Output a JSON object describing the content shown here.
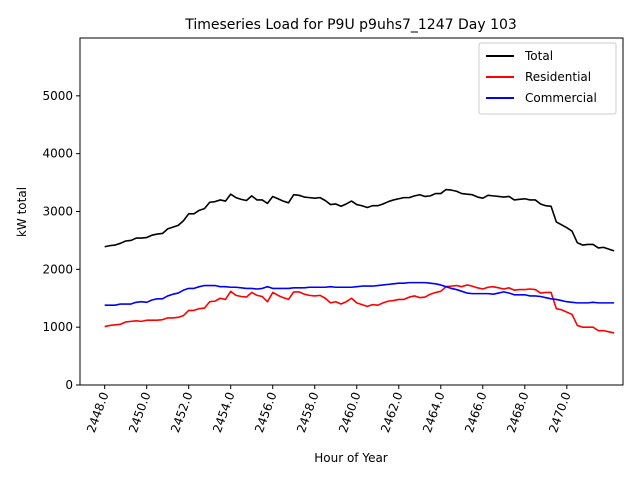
{
  "chart_data": {
    "type": "line",
    "title": "Timeseries Load for P9U p9uhs7_1247  Day 103",
    "xlabel": "Hour of Year",
    "ylabel": "kW total",
    "xlim": [
      2446.825,
      2472.675
    ],
    "ylim": [
      0,
      6000
    ],
    "xticks": [
      "2448.0",
      "2450.0",
      "2452.0",
      "2454.0",
      "2456.0",
      "2458.0",
      "2460.0",
      "2462.0",
      "2464.0",
      "2466.0",
      "2468.0",
      "2470.0"
    ],
    "xtick_values": [
      2448,
      2450,
      2452,
      2454,
      2456,
      2458,
      2460,
      2462,
      2464,
      2466,
      2468,
      2470
    ],
    "yticks": [
      "0",
      "1000",
      "2000",
      "3000",
      "4000",
      "5000"
    ],
    "ytick_values": [
      0,
      1000,
      2000,
      3000,
      4000,
      5000
    ],
    "legend_position": "top-right",
    "x_start": 2448.0,
    "x_step": 0.25,
    "series": [
      {
        "name": "Total",
        "color": "#000000",
        "values": [
          2390,
          2410,
          2420,
          2450,
          2490,
          2500,
          2540,
          2540,
          2550,
          2590,
          2610,
          2620,
          2700,
          2730,
          2760,
          2840,
          2960,
          2960,
          3020,
          3050,
          3160,
          3170,
          3200,
          3180,
          3300,
          3240,
          3210,
          3190,
          3270,
          3200,
          3200,
          3140,
          3260,
          3220,
          3180,
          3150,
          3290,
          3280,
          3250,
          3240,
          3230,
          3240,
          3190,
          3120,
          3130,
          3090,
          3130,
          3180,
          3120,
          3100,
          3070,
          3100,
          3100,
          3130,
          3170,
          3200,
          3220,
          3240,
          3240,
          3270,
          3290,
          3260,
          3270,
          3310,
          3310,
          3380,
          3370,
          3350,
          3310,
          3300,
          3290,
          3250,
          3230,
          3280,
          3270,
          3260,
          3250,
          3260,
          3200,
          3210,
          3220,
          3200,
          3200,
          3130,
          3100,
          3090,
          2820,
          2770,
          2720,
          2660,
          2460,
          2420,
          2430,
          2430,
          2370,
          2380,
          2350,
          2320
        ]
      },
      {
        "name": "Residential",
        "color": "#ff0000",
        "values": [
          1010,
          1030,
          1040,
          1050,
          1090,
          1100,
          1110,
          1100,
          1120,
          1120,
          1120,
          1130,
          1160,
          1160,
          1170,
          1200,
          1290,
          1290,
          1320,
          1330,
          1440,
          1450,
          1500,
          1480,
          1620,
          1550,
          1530,
          1520,
          1600,
          1550,
          1530,
          1440,
          1600,
          1550,
          1510,
          1480,
          1610,
          1610,
          1570,
          1550,
          1540,
          1550,
          1500,
          1420,
          1440,
          1400,
          1440,
          1500,
          1420,
          1390,
          1360,
          1390,
          1380,
          1420,
          1450,
          1460,
          1480,
          1480,
          1520,
          1540,
          1510,
          1520,
          1570,
          1600,
          1620,
          1700,
          1710,
          1720,
          1700,
          1730,
          1710,
          1680,
          1660,
          1690,
          1700,
          1680,
          1660,
          1680,
          1640,
          1650,
          1650,
          1660,
          1650,
          1590,
          1600,
          1600,
          1320,
          1300,
          1260,
          1220,
          1030,
          1000,
          1000,
          1000,
          940,
          940,
          920,
          900
        ]
      },
      {
        "name": "Commercial",
        "color": "#0000ff",
        "values": [
          1380,
          1380,
          1380,
          1400,
          1400,
          1400,
          1430,
          1440,
          1430,
          1470,
          1490,
          1490,
          1540,
          1570,
          1590,
          1640,
          1670,
          1670,
          1700,
          1720,
          1720,
          1720,
          1700,
          1700,
          1690,
          1690,
          1680,
          1670,
          1670,
          1660,
          1670,
          1700,
          1670,
          1670,
          1670,
          1670,
          1680,
          1680,
          1680,
          1690,
          1690,
          1690,
          1690,
          1700,
          1690,
          1690,
          1690,
          1690,
          1700,
          1710,
          1710,
          1710,
          1720,
          1730,
          1740,
          1750,
          1760,
          1760,
          1770,
          1770,
          1770,
          1770,
          1760,
          1750,
          1730,
          1700,
          1670,
          1650,
          1620,
          1590,
          1580,
          1580,
          1580,
          1580,
          1570,
          1590,
          1610,
          1590,
          1560,
          1560,
          1560,
          1540,
          1540,
          1530,
          1510,
          1490,
          1480,
          1460,
          1440,
          1430,
          1420,
          1420,
          1420,
          1430,
          1420,
          1420,
          1420,
          1420
        ]
      }
    ]
  }
}
